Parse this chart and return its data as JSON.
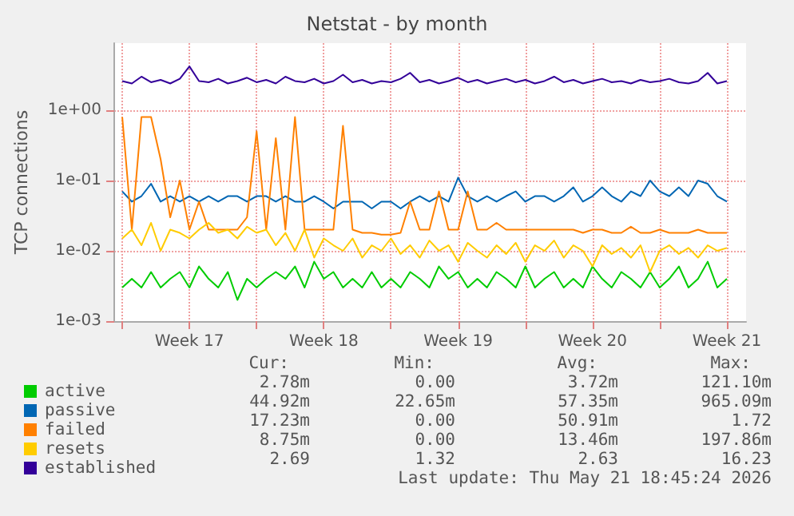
{
  "chart_data": {
    "type": "line",
    "title": "Netstat - by month",
    "ylabel": "TCP connections",
    "x": [
      "2026-04-20T00:00",
      "2026-04-20T12:00",
      "2026-04-21T00:00",
      "2026-04-21T12:00",
      "2026-04-22T00:00",
      "2026-04-22T12:00",
      "2026-04-23T00:00",
      "2026-04-23T12:00",
      "2026-04-24T00:00",
      "2026-04-24T12:00",
      "2026-04-25T00:00",
      "2026-04-25T12:00",
      "2026-04-26T00:00",
      "2026-04-26T12:00",
      "2026-04-27T00:00",
      "2026-04-27T12:00",
      "2026-04-28T00:00",
      "2026-04-28T12:00",
      "2026-04-29T00:00",
      "2026-04-29T12:00",
      "2026-04-30T00:00",
      "2026-04-30T12:00",
      "2026-05-01T00:00",
      "2026-05-01T12:00",
      "2026-05-02T00:00",
      "2026-05-02T12:00",
      "2026-05-03T00:00",
      "2026-05-03T12:00",
      "2026-05-04T00:00",
      "2026-05-04T12:00",
      "2026-05-05T00:00",
      "2026-05-05T12:00",
      "2026-05-06T00:00",
      "2026-05-06T12:00",
      "2026-05-07T00:00",
      "2026-05-07T12:00",
      "2026-05-08T00:00",
      "2026-05-08T12:00",
      "2026-05-09T00:00",
      "2026-05-09T12:00",
      "2026-05-10T00:00",
      "2026-05-10T12:00",
      "2026-05-11T00:00",
      "2026-05-11T12:00",
      "2026-05-12T00:00",
      "2026-05-12T12:00",
      "2026-05-13T00:00",
      "2026-05-13T12:00",
      "2026-05-14T00:00",
      "2026-05-14T12:00",
      "2026-05-15T00:00",
      "2026-05-15T12:00",
      "2026-05-16T00:00",
      "2026-05-16T12:00",
      "2026-05-17T00:00",
      "2026-05-17T12:00",
      "2026-05-18T00:00",
      "2026-05-18T12:00",
      "2026-05-19T00:00",
      "2026-05-19T12:00",
      "2026-05-20T00:00",
      "2026-05-20T12:00",
      "2026-05-21T00:00",
      "2026-05-21T12:00"
    ],
    "series": [
      {
        "name": "active",
        "color": "#00cc00",
        "values": [
          0.003,
          0.004,
          0.003,
          0.005,
          0.003,
          0.004,
          0.005,
          0.003,
          0.006,
          0.004,
          0.003,
          0.005,
          0.002,
          0.004,
          0.003,
          0.004,
          0.005,
          0.004,
          0.006,
          0.003,
          0.007,
          0.004,
          0.005,
          0.003,
          0.004,
          0.003,
          0.005,
          0.003,
          0.004,
          0.003,
          0.005,
          0.004,
          0.003,
          0.006,
          0.004,
          0.005,
          0.003,
          0.004,
          0.003,
          0.005,
          0.004,
          0.003,
          0.006,
          0.003,
          0.004,
          0.005,
          0.003,
          0.004,
          0.003,
          0.006,
          0.004,
          0.003,
          0.005,
          0.004,
          0.003,
          0.005,
          0.003,
          0.004,
          0.006,
          0.003,
          0.004,
          0.007,
          0.003,
          0.004
        ]
      },
      {
        "name": "passive",
        "color": "#0066b3",
        "values": [
          0.07,
          0.05,
          0.06,
          0.09,
          0.05,
          0.06,
          0.05,
          0.06,
          0.05,
          0.06,
          0.05,
          0.06,
          0.06,
          0.05,
          0.06,
          0.06,
          0.05,
          0.06,
          0.05,
          0.05,
          0.06,
          0.05,
          0.04,
          0.05,
          0.05,
          0.05,
          0.04,
          0.05,
          0.05,
          0.04,
          0.05,
          0.06,
          0.05,
          0.06,
          0.05,
          0.11,
          0.06,
          0.05,
          0.06,
          0.05,
          0.06,
          0.07,
          0.05,
          0.06,
          0.06,
          0.05,
          0.06,
          0.08,
          0.05,
          0.06,
          0.08,
          0.06,
          0.05,
          0.07,
          0.06,
          0.1,
          0.07,
          0.06,
          0.08,
          0.06,
          0.1,
          0.09,
          0.06,
          0.05
        ]
      },
      {
        "name": "failed",
        "color": "#ff8000",
        "values": [
          0.8,
          0.02,
          0.8,
          0.8,
          0.2,
          0.03,
          0.1,
          0.02,
          0.05,
          0.02,
          0.02,
          0.02,
          0.02,
          0.03,
          0.5,
          0.02,
          0.4,
          0.02,
          0.8,
          0.02,
          0.02,
          0.02,
          0.02,
          0.6,
          0.02,
          0.018,
          0.018,
          0.017,
          0.017,
          0.018,
          0.05,
          0.02,
          0.02,
          0.07,
          0.02,
          0.02,
          0.07,
          0.02,
          0.02,
          0.025,
          0.02,
          0.02,
          0.02,
          0.02,
          0.02,
          0.02,
          0.02,
          0.02,
          0.018,
          0.02,
          0.02,
          0.018,
          0.018,
          0.022,
          0.018,
          0.018,
          0.02,
          0.018,
          0.018,
          0.018,
          0.02,
          0.018,
          0.018,
          0.018
        ]
      },
      {
        "name": "resets",
        "color": "#ffcc00",
        "values": [
          0.015,
          0.02,
          0.012,
          0.025,
          0.01,
          0.02,
          0.018,
          0.015,
          0.02,
          0.025,
          0.018,
          0.02,
          0.015,
          0.022,
          0.018,
          0.02,
          0.012,
          0.018,
          0.01,
          0.02,
          0.008,
          0.015,
          0.012,
          0.01,
          0.015,
          0.008,
          0.012,
          0.01,
          0.015,
          0.009,
          0.012,
          0.008,
          0.014,
          0.01,
          0.012,
          0.007,
          0.013,
          0.01,
          0.008,
          0.012,
          0.009,
          0.013,
          0.007,
          0.012,
          0.01,
          0.014,
          0.008,
          0.012,
          0.01,
          0.006,
          0.012,
          0.009,
          0.011,
          0.008,
          0.012,
          0.005,
          0.01,
          0.012,
          0.009,
          0.011,
          0.008,
          0.012,
          0.01,
          0.011
        ]
      },
      {
        "name": "established",
        "color": "#330099",
        "values": [
          2.6,
          2.4,
          3.0,
          2.5,
          2.7,
          2.4,
          2.8,
          4.2,
          2.6,
          2.5,
          2.8,
          2.4,
          2.6,
          2.9,
          2.5,
          2.7,
          2.4,
          3.0,
          2.6,
          2.5,
          2.8,
          2.4,
          2.6,
          3.2,
          2.5,
          2.7,
          2.4,
          2.6,
          2.5,
          2.8,
          3.4,
          2.5,
          2.7,
          2.4,
          2.6,
          2.9,
          2.5,
          2.7,
          2.4,
          2.6,
          2.8,
          2.5,
          2.7,
          2.4,
          2.6,
          3.0,
          2.5,
          2.7,
          2.4,
          2.6,
          2.8,
          2.5,
          2.6,
          2.4,
          2.7,
          2.5,
          2.6,
          2.8,
          2.5,
          2.4,
          2.6,
          3.4,
          2.4,
          2.6
        ]
      }
    ],
    "xlim": [
      "2026-04-19T14:00",
      "2026-05-22T12:00"
    ],
    "xticks": [
      {
        "value": "2026-04-20T00:00",
        "label": null
      },
      {
        "value": "2026-04-23T12:00",
        "label": "Week 17"
      },
      {
        "value": "2026-04-27T00:00",
        "label": null
      },
      {
        "value": "2026-04-30T12:00",
        "label": "Week 18"
      },
      {
        "value": "2026-05-04T00:00",
        "label": null
      },
      {
        "value": "2026-05-07T12:00",
        "label": "Week 19"
      },
      {
        "value": "2026-05-11T00:00",
        "label": null
      },
      {
        "value": "2026-05-14T12:00",
        "label": "Week 20"
      },
      {
        "value": "2026-05-18T00:00",
        "label": null
      },
      {
        "value": "2026-05-21T12:00",
        "label": "Week 21"
      }
    ],
    "ylim": [
      0.001,
      9
    ],
    "yticks": [
      {
        "value": 0.001,
        "label": "1e-03"
      },
      {
        "value": 0.01,
        "label": "1e-02"
      },
      {
        "value": 0.1,
        "label": "1e-01"
      },
      {
        "value": 1,
        "label": "1e+00"
      }
    ],
    "log": "y",
    "grid": true,
    "legend": "bottom left",
    "marker": "none",
    "line_style": "solid",
    "annotations": [
      "Cur:",
      "Min:",
      "Avg:",
      "Max:",
      "2.78m",
      "0.00",
      "3.72m",
      "121.10m",
      "44.92m",
      "22.65m",
      "57.35m",
      "965.09m",
      "17.23m",
      "0.00",
      "50.91m",
      "1.72",
      "8.75m",
      "0.00",
      "13.46m",
      "197.86m",
      "2.69",
      "1.32",
      "2.63",
      "16.23",
      "Last update: Thu May 21 18:45:24 2026"
    ]
  }
}
